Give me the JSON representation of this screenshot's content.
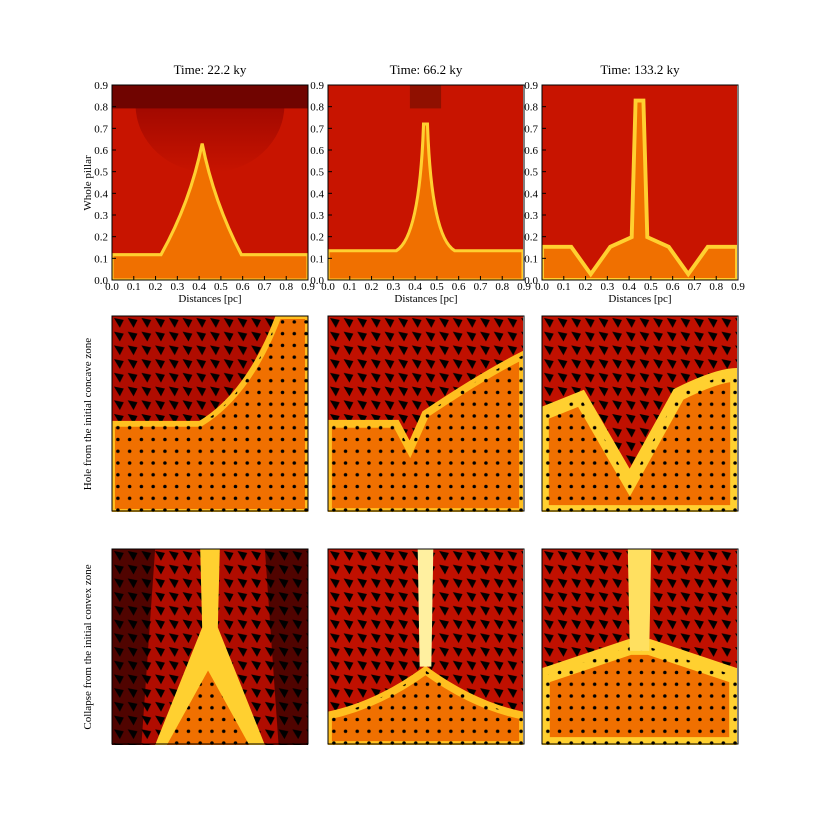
{
  "columns": [
    {
      "title": "Time: 22.2 ky"
    },
    {
      "title": "Time: 66.2 ky"
    },
    {
      "title": "Time: 133.2 ky"
    }
  ],
  "rows": [
    {
      "label": "Whole pillar"
    },
    {
      "label": "Hole from the initial concave zone"
    },
    {
      "label": "Collapse from the initial convex zone"
    }
  ],
  "xlabel": "Distances [pc]",
  "xlim": [
    0,
    0.9
  ],
  "ylim": [
    0,
    0.9
  ],
  "xticks": [
    {
      "value": 0,
      "label": "0.0"
    },
    {
      "value": 0.1,
      "label": "0.1"
    },
    {
      "value": 0.2,
      "label": "0.2"
    },
    {
      "value": 0.3,
      "label": "0.3"
    },
    {
      "value": 0.4,
      "label": "0.4"
    },
    {
      "value": 0.5,
      "label": "0.5"
    },
    {
      "value": 0.6,
      "label": "0.6"
    },
    {
      "value": 0.7,
      "label": "0.7"
    },
    {
      "value": 0.8,
      "label": "0.8"
    },
    {
      "value": 0.9,
      "label": "0.9"
    }
  ],
  "yticks": [
    {
      "value": 0,
      "label": "0.0"
    },
    {
      "value": 0.1,
      "label": "0.1"
    },
    {
      "value": 0.2,
      "label": "0.2"
    },
    {
      "value": 0.3,
      "label": "0.3"
    },
    {
      "value": 0.4,
      "label": "0.4"
    },
    {
      "value": 0.5,
      "label": "0.5"
    },
    {
      "value": 0.6,
      "label": "0.6"
    },
    {
      "value": 0.7,
      "label": "0.7"
    },
    {
      "value": 0.8,
      "label": "0.8"
    },
    {
      "value": 0.9,
      "label": "0.9"
    }
  ]
}
